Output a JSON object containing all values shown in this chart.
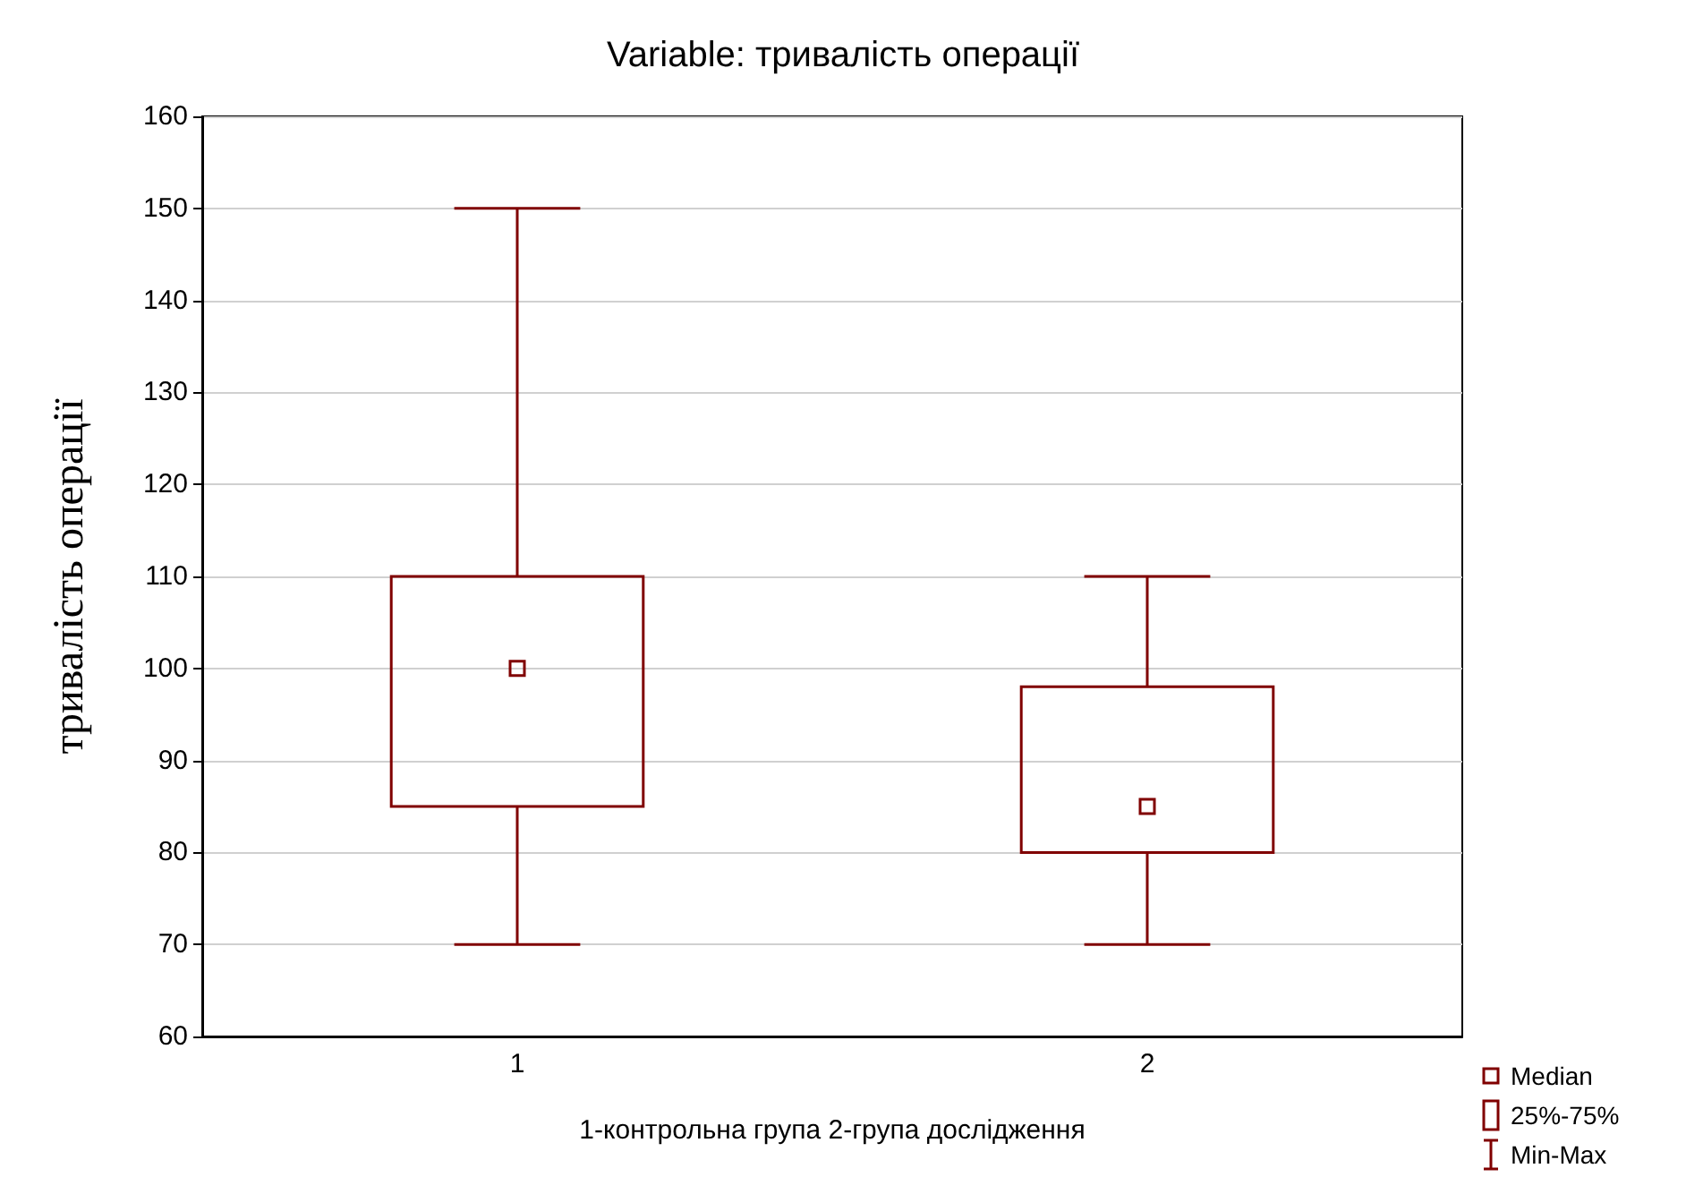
{
  "chart_data": {
    "type": "box",
    "title": "Variable: тривалість операції",
    "xlabel": "1-контрольна група 2-група дослідження",
    "ylabel": "тривалість операції",
    "categories": [
      "1",
      "2"
    ],
    "series": [
      {
        "color": "#800000",
        "boxes": [
          {
            "low": 70,
            "q1": 85,
            "median": 100,
            "q3": 110,
            "high": 150
          },
          {
            "low": 70,
            "q1": 80,
            "median": 85,
            "q3": 98,
            "high": 110
          }
        ]
      }
    ],
    "ylim": [
      60,
      160
    ],
    "yticks": [
      60,
      70,
      80,
      90,
      100,
      110,
      120,
      130,
      140,
      150,
      160
    ],
    "grid": "y",
    "annotations": [
      "Median",
      "25%-75%",
      "Min-Max"
    ]
  }
}
